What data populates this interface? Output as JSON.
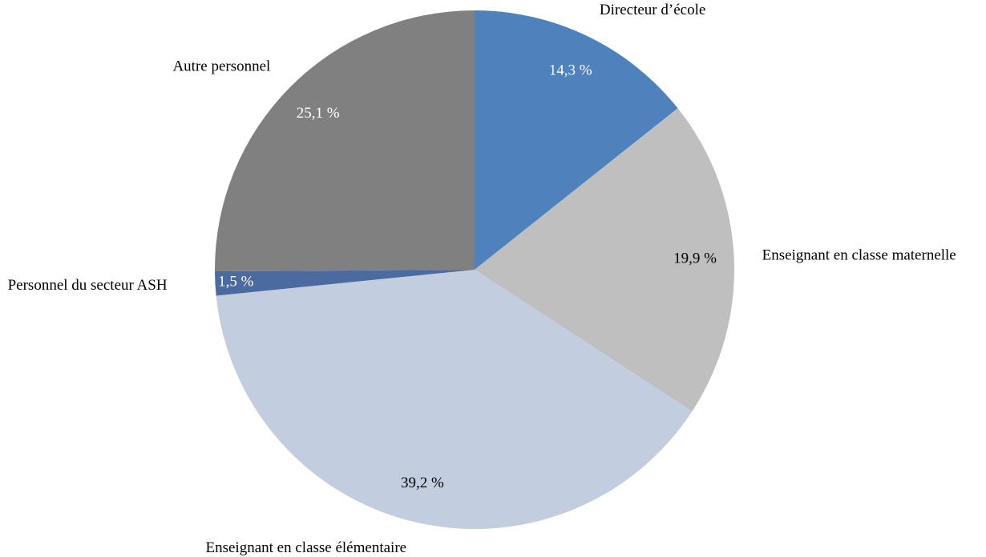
{
  "chart_data": {
    "type": "pie",
    "categories": [
      "Directeur d’école",
      "Enseignant en classe maternelle",
      "Enseignant en classe élémentaire",
      "Personnel du secteur ASH",
      "Autre personnel"
    ],
    "values": [
      14.3,
      19.9,
      39.2,
      1.5,
      25.1
    ],
    "value_labels": [
      "14,3 %",
      "19,9 %",
      "39,2 %",
      "1,5 %",
      "25,1 %"
    ],
    "colors": [
      "#4f81bd",
      "#bfbfbf",
      "#c3cde0",
      "#4a6aa0",
      "#808080"
    ]
  }
}
